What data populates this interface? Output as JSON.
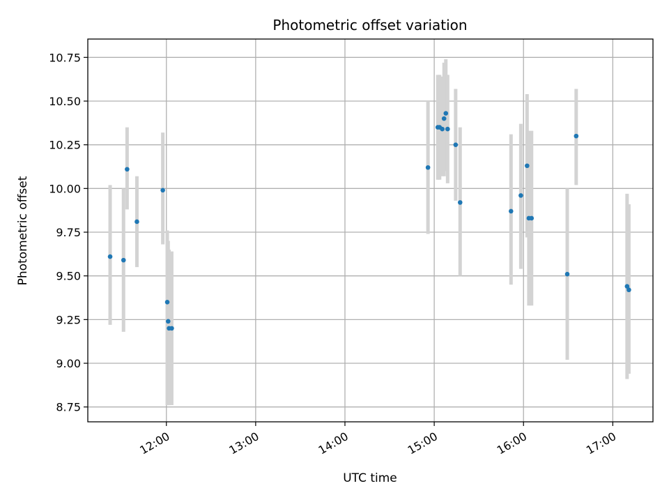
{
  "chart_data": {
    "type": "scatter",
    "title": "Photometric offset variation",
    "xlabel": "UTC time",
    "ylabel": "Photometric offset",
    "x_unit": "UTC hour (decimal)",
    "xlim": [
      11.12,
      17.45
    ],
    "ylim": [
      8.665,
      10.855
    ],
    "x_ticks": [
      12,
      13,
      14,
      15,
      16,
      17
    ],
    "x_tick_labels": [
      "12:00",
      "13:00",
      "14:00",
      "15:00",
      "16:00",
      "17:00"
    ],
    "y_ticks": [
      8.75,
      9.0,
      9.25,
      9.5,
      9.75,
      10.0,
      10.25,
      10.5,
      10.75
    ],
    "y_tick_labels": [
      "8.75",
      "9.00",
      "9.25",
      "9.50",
      "9.75",
      "10.00",
      "10.25",
      "10.50",
      "10.75"
    ],
    "grid": true,
    "legend": "none",
    "colors": {
      "points": "#1f77b4",
      "error_bars": "#d3d3d3",
      "grid": "#b0b0b0"
    },
    "series": [
      {
        "points": [
          {
            "x": 11.37,
            "y": 9.61,
            "lo": 9.22,
            "hi": 10.02
          },
          {
            "x": 11.52,
            "y": 9.59,
            "lo": 9.18,
            "hi": 10.0
          },
          {
            "x": 11.56,
            "y": 10.11,
            "lo": 9.88,
            "hi": 10.35
          },
          {
            "x": 11.67,
            "y": 9.81,
            "lo": 9.55,
            "hi": 10.07
          },
          {
            "x": 11.96,
            "y": 9.99,
            "lo": 9.68,
            "hi": 10.32
          },
          {
            "x": 12.01,
            "y": 9.35,
            "lo": 8.76,
            "hi": 9.76
          },
          {
            "x": 12.02,
            "y": 9.24,
            "lo": 8.76,
            "hi": 9.7
          },
          {
            "x": 12.03,
            "y": 9.2,
            "lo": 8.76,
            "hi": 9.65
          },
          {
            "x": 12.06,
            "y": 9.2,
            "lo": 8.76,
            "hi": 9.64
          },
          {
            "x": 14.93,
            "y": 10.12,
            "lo": 9.74,
            "hi": 10.5
          },
          {
            "x": 15.04,
            "y": 10.35,
            "lo": 10.05,
            "hi": 10.65
          },
          {
            "x": 15.06,
            "y": 10.35,
            "lo": 10.05,
            "hi": 10.65
          },
          {
            "x": 15.09,
            "y": 10.34,
            "lo": 10.07,
            "hi": 10.64
          },
          {
            "x": 15.11,
            "y": 10.4,
            "lo": 10.07,
            "hi": 10.72
          },
          {
            "x": 15.13,
            "y": 10.43,
            "lo": 10.1,
            "hi": 10.74
          },
          {
            "x": 15.15,
            "y": 10.34,
            "lo": 10.03,
            "hi": 10.65
          },
          {
            "x": 15.24,
            "y": 10.25,
            "lo": 9.93,
            "hi": 10.57
          },
          {
            "x": 15.29,
            "y": 9.92,
            "lo": 9.5,
            "hi": 10.35
          },
          {
            "x": 15.86,
            "y": 9.87,
            "lo": 9.45,
            "hi": 10.31
          },
          {
            "x": 15.97,
            "y": 9.96,
            "lo": 9.54,
            "hi": 10.37
          },
          {
            "x": 16.04,
            "y": 10.13,
            "lo": 9.72,
            "hi": 10.54
          },
          {
            "x": 16.06,
            "y": 9.83,
            "lo": 9.33,
            "hi": 10.33
          },
          {
            "x": 16.09,
            "y": 9.83,
            "lo": 9.33,
            "hi": 10.33
          },
          {
            "x": 16.49,
            "y": 9.51,
            "lo": 9.02,
            "hi": 10.0
          },
          {
            "x": 16.59,
            "y": 10.3,
            "lo": 10.02,
            "hi": 10.57
          },
          {
            "x": 17.16,
            "y": 9.44,
            "lo": 8.91,
            "hi": 9.97
          },
          {
            "x": 17.18,
            "y": 9.42,
            "lo": 8.94,
            "hi": 9.91
          }
        ]
      }
    ]
  }
}
